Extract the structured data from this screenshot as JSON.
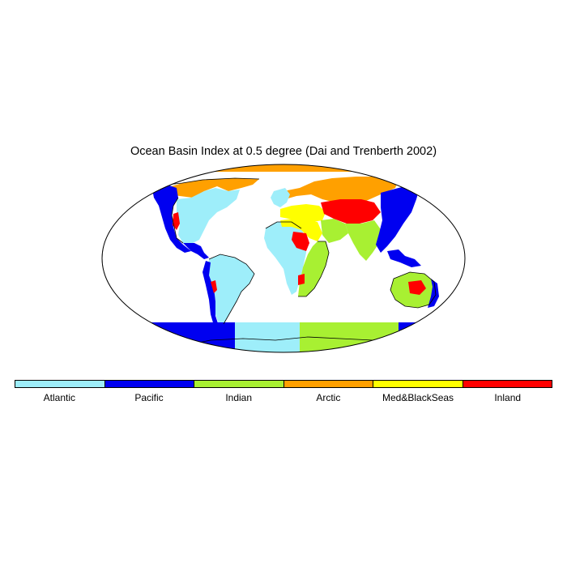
{
  "title": "Ocean Basin Index at 0.5 degree (Dai and Trenberth 2002)",
  "colors": {
    "atlantic": "#9eeefa",
    "pacific": "#0000f0",
    "indian": "#a8f032",
    "arctic": "#ffa000",
    "med_black": "#ffff00",
    "inland": "#ff0000"
  },
  "legend": [
    {
      "label": "Atlantic",
      "color": "#9eeefa"
    },
    {
      "label": "Pacific",
      "color": "#0000f0"
    },
    {
      "label": "Indian",
      "color": "#a8f032"
    },
    {
      "label": "Arctic",
      "color": "#ffa000"
    },
    {
      "label": "Med&BlackSeas",
      "color": "#ffff00"
    },
    {
      "label": "Inland",
      "color": "#ff0000"
    }
  ]
}
